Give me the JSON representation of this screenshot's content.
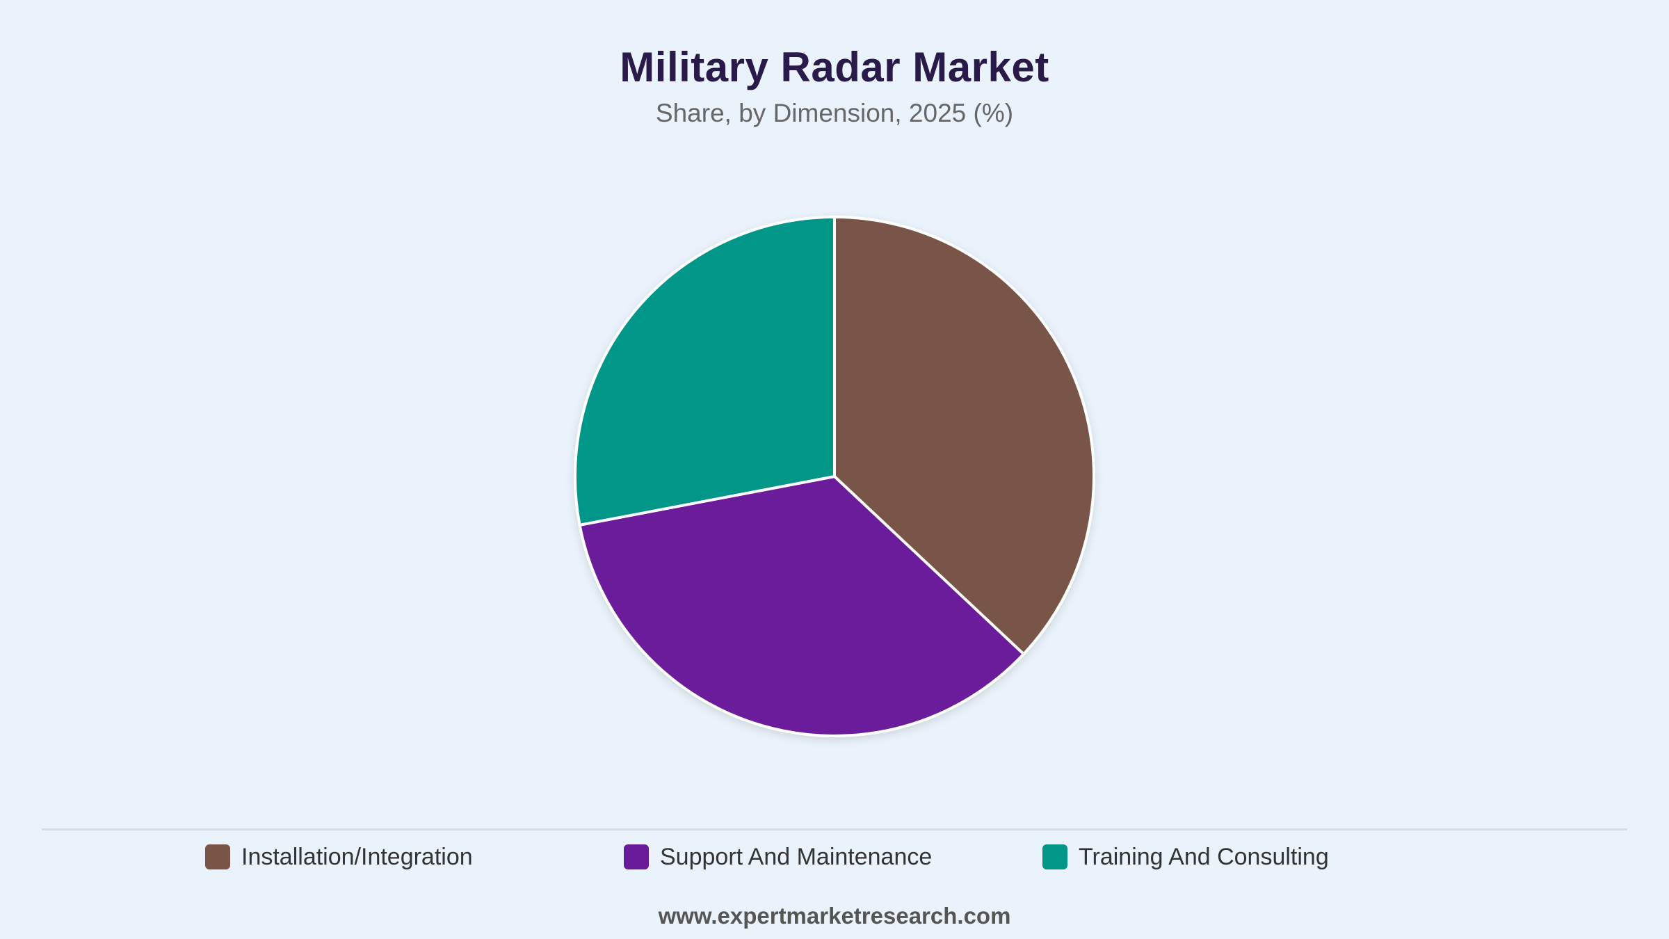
{
  "title": "Military Radar Market",
  "subtitle": "Share, by Dimension, 2025 (%)",
  "footer": "www.expertmarketresearch.com",
  "chart_data": {
    "type": "pie",
    "title": "Military Radar Market",
    "subtitle": "Share, by Dimension, 2025 (%)",
    "categories": [
      "Installation/Integration",
      "Support And Maintenance",
      "Training And Consulting"
    ],
    "values": [
      37,
      35,
      28
    ],
    "colors": [
      "#795548",
      "#6a1b9a",
      "#009688"
    ],
    "legend_position": "bottom",
    "start_angle": "top",
    "direction": "clockwise"
  }
}
